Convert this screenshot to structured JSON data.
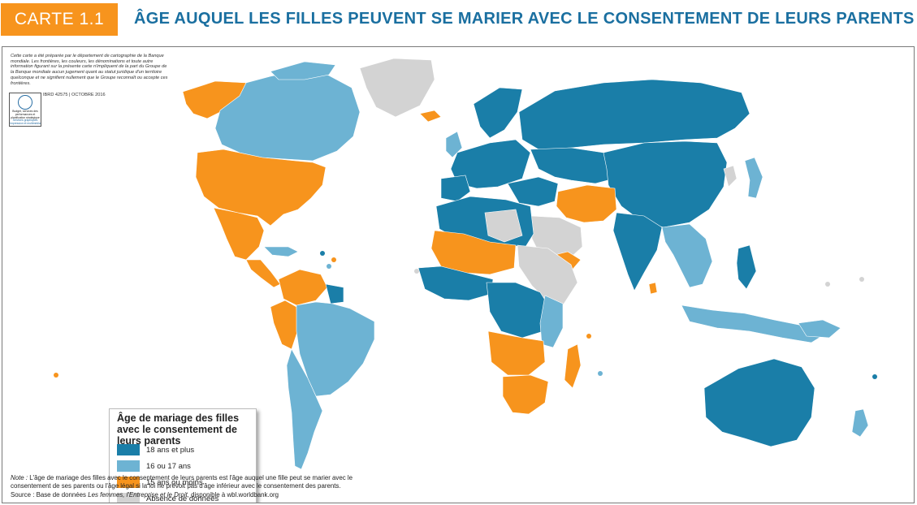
{
  "header": {
    "badge": "CARTE 1.1",
    "title": "ÂGE AUQUEL LES FILLES PEUVENT SE MARIER AVEC LE CONSENTEMENT DE LEURS PARENTS"
  },
  "disclaimer": "Cette carte a été préparée par le département de cartographie de la Banque mondiale. Les frontières, les couleurs, les dénominations et toute autre information figurant sur la présente carte n'impliquent de la part du Groupe de la Banque mondiale aucun jugement quant au statut juridique d'un territoire quelconque et ne signifient nullement que le Groupe reconnaît ou accepte ces frontières.",
  "map_id": "IBRD 42575 | OCTOBRE 2016",
  "logo": {
    "text": "Budget, services des performances et planification stratégique",
    "subtext": "Services graphiques Impression et multimédia"
  },
  "legend": {
    "title": "Âge de mariage des filles avec le consentement de leurs parents",
    "items": [
      {
        "label": "18 ans et plus",
        "color": "#1a7ea8"
      },
      {
        "label": "16 ou 17 ans",
        "color": "#6db3d3"
      },
      {
        "label": "15 ans ou moins",
        "color": "#f7941d"
      },
      {
        "label": "Absence de données",
        "color": "#d3d3d3"
      }
    ]
  },
  "note": {
    "label": "Note :",
    "text": "L'âge de mariage des filles avec le consentement de leurs parents est l'âge auquel une fille peut se marier avec le consentement de ses parents ou l'âge légal si la loi ne prévoit pas d'âge inférieur avec le consentement des parents."
  },
  "source": {
    "prefix": "Source : Base de données",
    "database": "Les femmes, l'Entreprise et le Droit,",
    "suffix": "disponible à wbl.worldbank.org"
  },
  "colors": {
    "accent": "#f7941d",
    "title": "#1a6fa0",
    "dark_blue": "#1a7ea8",
    "light_blue": "#6db3d3",
    "orange": "#f7941d",
    "gray": "#d3d3d3"
  }
}
